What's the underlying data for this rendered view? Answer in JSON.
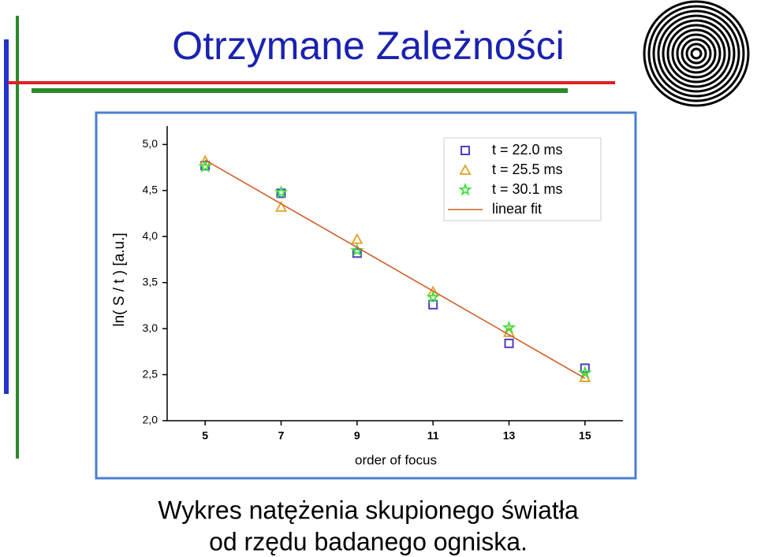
{
  "header": {
    "title": "Otrzymane Zależności"
  },
  "caption": [
    "Wykres natężenia skupionego światła",
    "od rzędu badanego ogniska."
  ],
  "chart_data": {
    "type": "scatter",
    "x_label": "order of focus",
    "y_label": "ln( S / t ) [a.u.]",
    "x": [
      5,
      7,
      9,
      11,
      13,
      15
    ],
    "xlim": [
      4,
      16
    ],
    "xticks": [
      5,
      7,
      9,
      11,
      13,
      15
    ],
    "ylim": [
      2.0,
      5.2
    ],
    "yticks": [
      {
        "value": 2.0,
        "label": "2,0"
      },
      {
        "value": 2.5,
        "label": "2,5"
      },
      {
        "value": 3.0,
        "label": "3,0"
      },
      {
        "value": 3.5,
        "label": "3,5"
      },
      {
        "value": 4.0,
        "label": "4,0"
      },
      {
        "value": 4.5,
        "label": "4,5"
      },
      {
        "value": 5.0,
        "label": "5,0"
      }
    ],
    "legend": "top-right",
    "series": [
      {
        "name": "t = 22.0 ms",
        "color": "#4a3fc4",
        "marker": "square",
        "values": [
          4.77,
          4.47,
          3.82,
          3.26,
          2.84,
          2.57
        ]
      },
      {
        "name": "t = 25.5 ms",
        "color": "#e0a020",
        "marker": "triangle",
        "values": [
          4.82,
          4.32,
          3.97,
          3.4,
          2.96,
          2.47
        ]
      },
      {
        "name": "t = 30.1 ms",
        "color": "#3ee03e",
        "marker": "star",
        "values": [
          4.76,
          4.48,
          3.85,
          3.34,
          3.01,
          2.52
        ]
      },
      {
        "name": "linear fit",
        "color": "#d0602a",
        "marker": "line",
        "x": [
          5,
          15
        ],
        "values": [
          4.83,
          2.46
        ]
      }
    ]
  }
}
